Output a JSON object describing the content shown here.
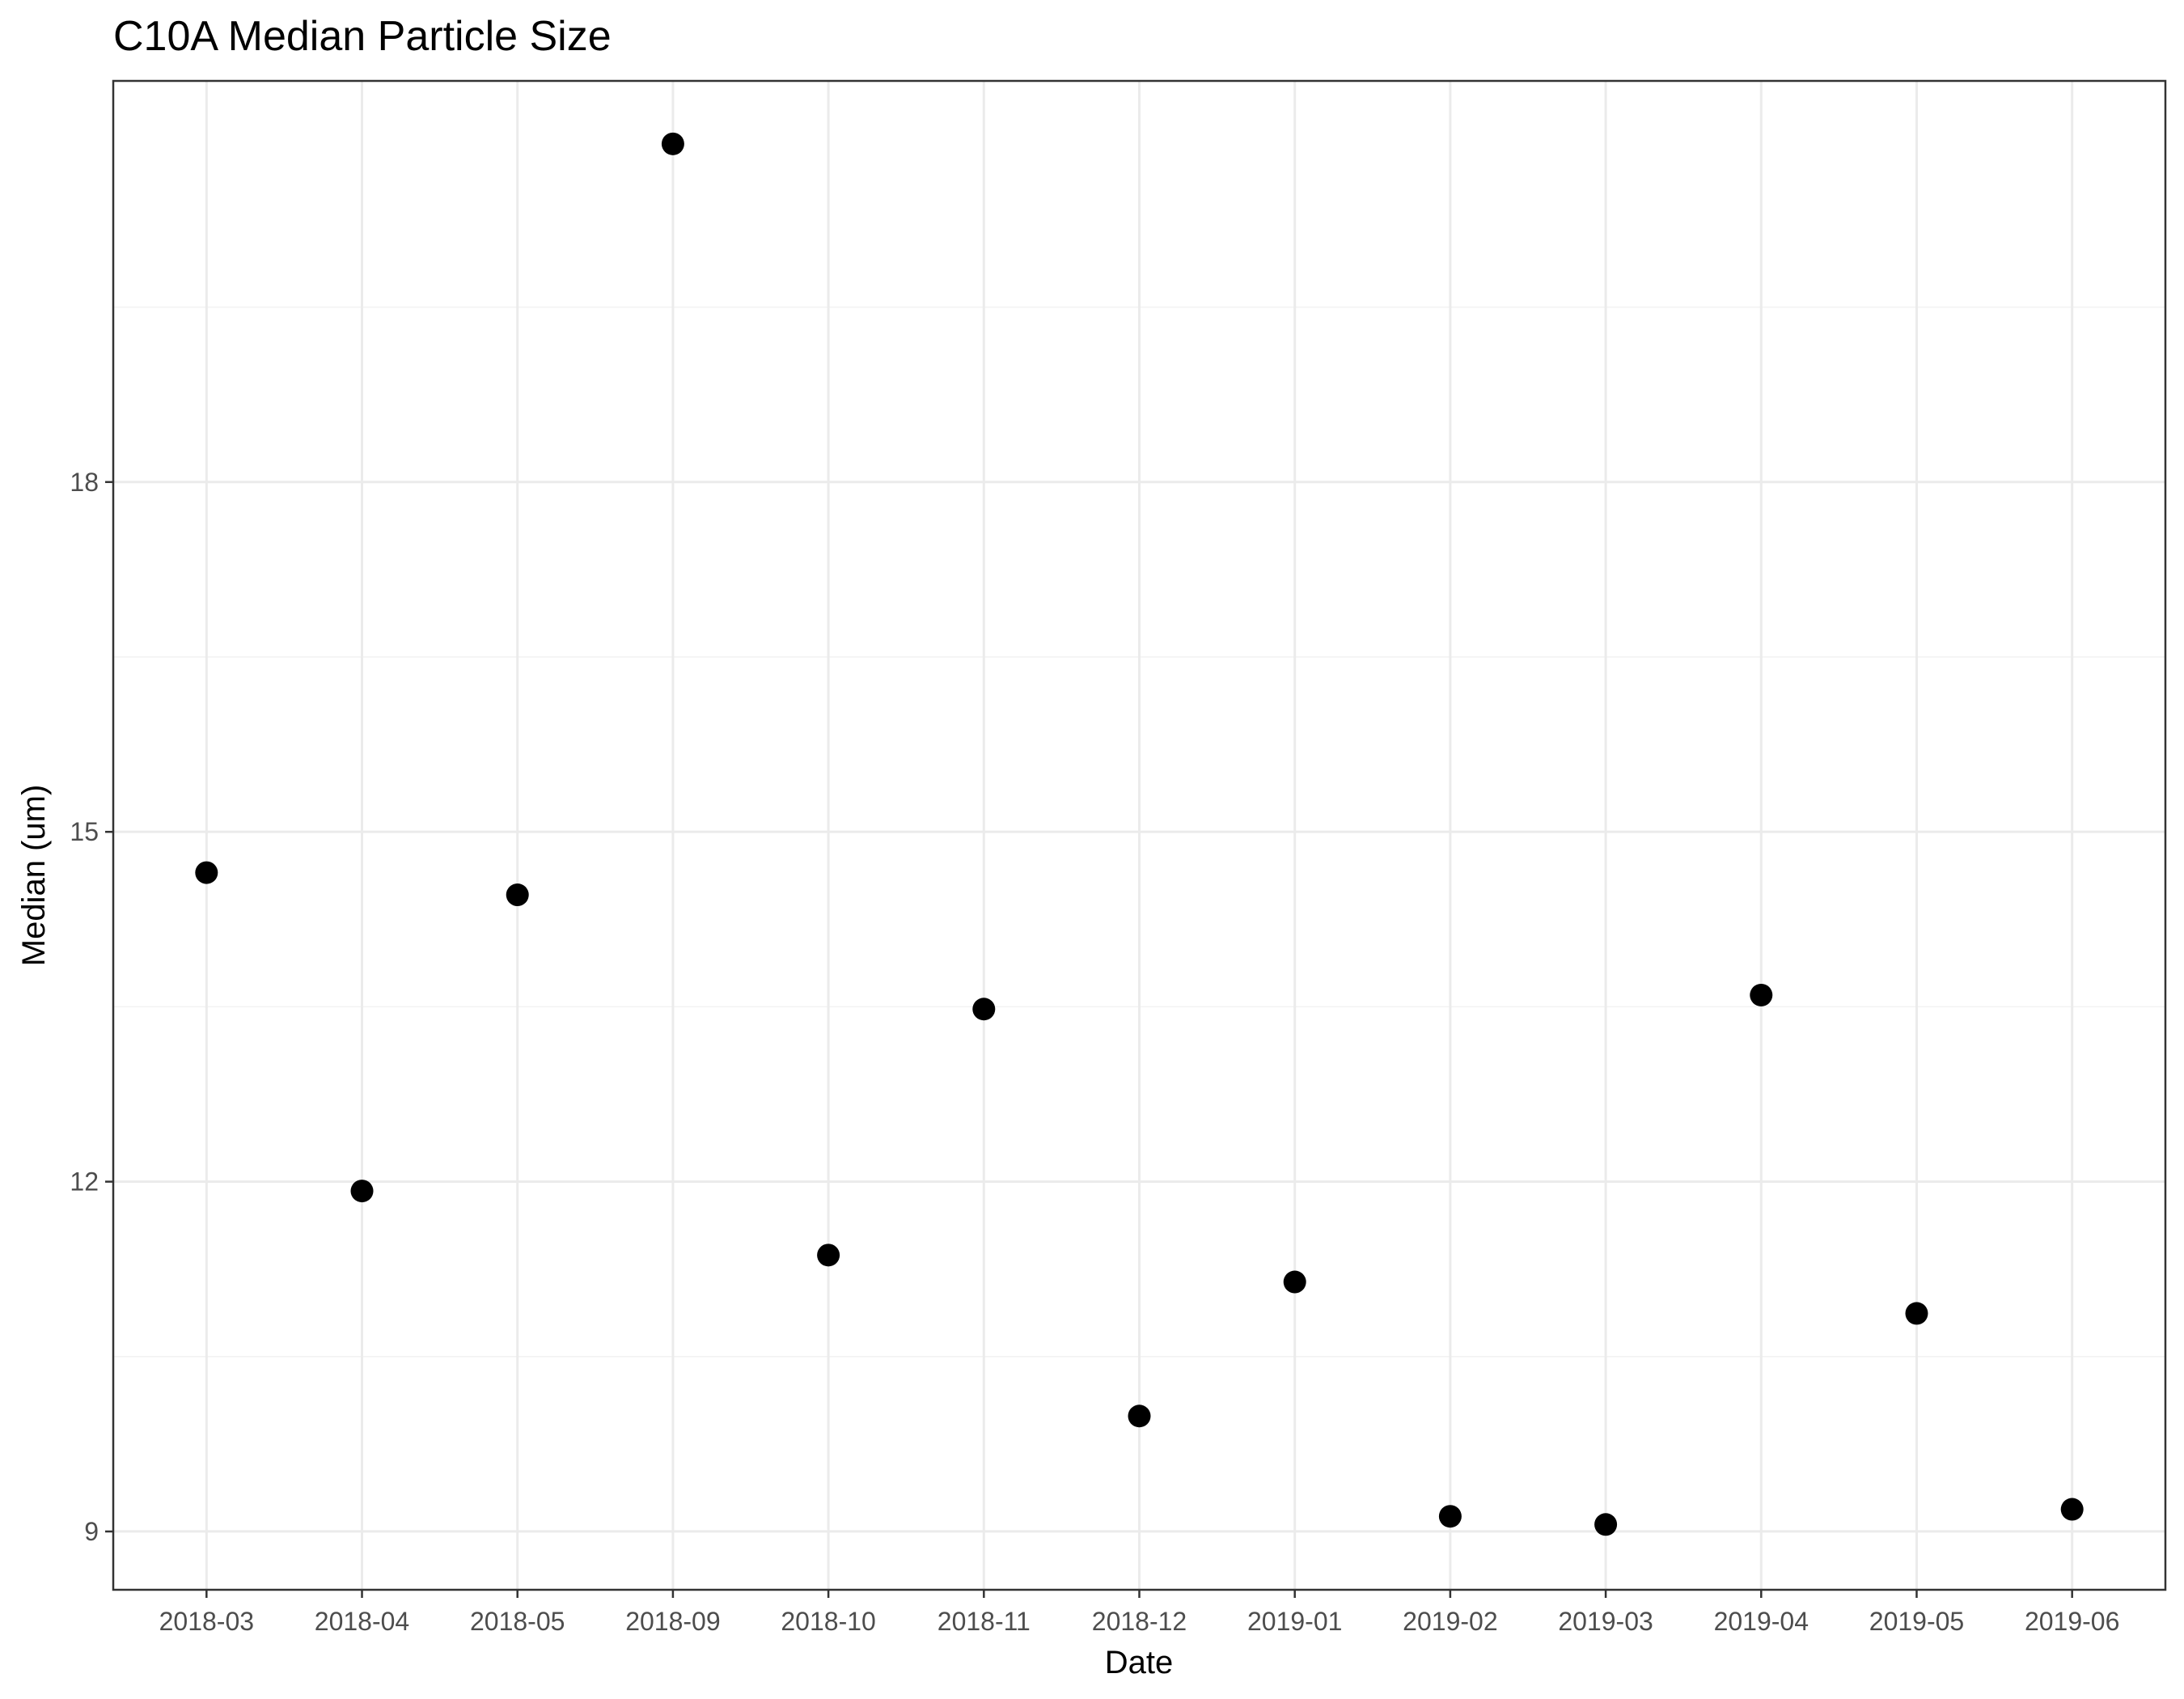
{
  "chart_data": {
    "type": "scatter",
    "title": "C10A Median Particle Size",
    "xlabel": "Date",
    "ylabel": "Median (um)",
    "x_type": "category",
    "categories": [
      "2018-03",
      "2018-04",
      "2018-05",
      "2018-09",
      "2018-10",
      "2018-11",
      "2018-12",
      "2019-01",
      "2019-02",
      "2019-03",
      "2019-04",
      "2019-05",
      "2019-06"
    ],
    "values": [
      14.65,
      11.92,
      14.46,
      20.9,
      11.37,
      13.48,
      9.99,
      11.14,
      9.13,
      9.06,
      13.6,
      10.87,
      9.19
    ],
    "ylim": [
      8.5,
      21.44
    ],
    "yticks": [
      9,
      12,
      15,
      18
    ],
    "ytick_labels": [
      "9",
      "12",
      "15",
      "18"
    ],
    "y_minor_ticks": [
      10.5,
      13.5,
      16.5,
      19.5
    ],
    "grid": true,
    "point_color": "#000000",
    "legend": "none"
  }
}
